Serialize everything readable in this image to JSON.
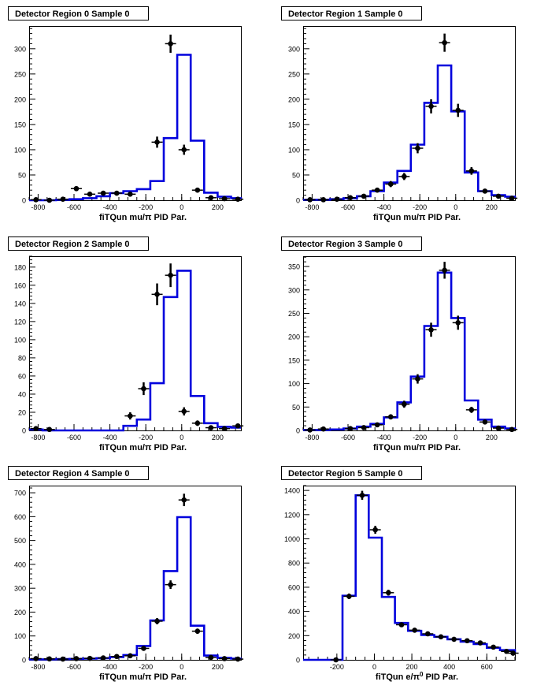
{
  "colors": {
    "mc": "#0000dd",
    "data": "#000000",
    "frame": "#000000"
  },
  "chart_data": [
    {
      "type": "histogram",
      "title": "Detector Region 0 Sample 0",
      "xlabel": "fiTQun mu/π PID Par.",
      "xlim": [
        -850,
        330
      ],
      "ylim": [
        0,
        345
      ],
      "xticks": [
        -800,
        -600,
        -400,
        -200,
        0,
        200
      ],
      "yticks": [
        0,
        50,
        100,
        150,
        200,
        250,
        300
      ],
      "bin_edges": [
        -850,
        -775,
        -700,
        -625,
        -550,
        -475,
        -400,
        -325,
        -250,
        -175,
        -100,
        -25,
        50,
        125,
        200,
        275,
        350
      ],
      "mc": [
        0,
        0,
        1,
        2,
        4,
        8,
        14,
        18,
        22,
        38,
        123,
        288,
        118,
        15,
        7,
        4,
        3
      ],
      "data_points": [
        {
          "x": -812,
          "y": 1,
          "e": 1
        },
        {
          "x": -737,
          "y": 0,
          "e": 1
        },
        {
          "x": -662,
          "y": 2,
          "e": 1.5
        },
        {
          "x": -587,
          "y": 23,
          "e": 5
        },
        {
          "x": -512,
          "y": 12,
          "e": 3.5
        },
        {
          "x": -437,
          "y": 14,
          "e": 4
        },
        {
          "x": -362,
          "y": 14,
          "e": 4
        },
        {
          "x": -287,
          "y": 12,
          "e": 3.5
        },
        {
          "x": -137,
          "y": 115,
          "e": 11
        },
        {
          "x": -62,
          "y": 310,
          "e": 18
        },
        {
          "x": 13,
          "y": 100,
          "e": 10
        },
        {
          "x": 88,
          "y": 20,
          "e": 4.5
        },
        {
          "x": 163,
          "y": 5,
          "e": 2.5
        },
        {
          "x": 238,
          "y": 3,
          "e": 2
        },
        {
          "x": 313,
          "y": 2,
          "e": 1.5
        }
      ]
    },
    {
      "type": "histogram",
      "title": "Detector Region 1 Sample 0",
      "xlabel": "fiTQun mu/π PID Par.",
      "xlim": [
        -850,
        330
      ],
      "ylim": [
        0,
        345
      ],
      "xticks": [
        -800,
        -600,
        -400,
        -200,
        0,
        200
      ],
      "yticks": [
        0,
        50,
        100,
        150,
        200,
        250,
        300
      ],
      "bin_edges": [
        -850,
        -775,
        -700,
        -625,
        -550,
        -475,
        -400,
        -325,
        -250,
        -175,
        -100,
        -25,
        50,
        125,
        200,
        275,
        350
      ],
      "mc": [
        1,
        1,
        2,
        4,
        8,
        18,
        35,
        58,
        110,
        193,
        267,
        176,
        55,
        18,
        10,
        7,
        5
      ],
      "data_points": [
        {
          "x": -812,
          "y": 1,
          "e": 1
        },
        {
          "x": -737,
          "y": 1,
          "e": 1
        },
        {
          "x": -662,
          "y": 2,
          "e": 1.5
        },
        {
          "x": -587,
          "y": 5,
          "e": 2.5
        },
        {
          "x": -512,
          "y": 8,
          "e": 3
        },
        {
          "x": -437,
          "y": 20,
          "e": 4.5
        },
        {
          "x": -362,
          "y": 32,
          "e": 6
        },
        {
          "x": -287,
          "y": 47,
          "e": 7
        },
        {
          "x": -212,
          "y": 103,
          "e": 10
        },
        {
          "x": -137,
          "y": 186,
          "e": 14
        },
        {
          "x": -62,
          "y": 312,
          "e": 18
        },
        {
          "x": 13,
          "y": 178,
          "e": 13
        },
        {
          "x": 88,
          "y": 58,
          "e": 7.5
        },
        {
          "x": 163,
          "y": 18,
          "e": 4
        },
        {
          "x": 238,
          "y": 8,
          "e": 3
        },
        {
          "x": 313,
          "y": 4,
          "e": 2
        }
      ]
    },
    {
      "type": "histogram",
      "title": "Detector Region 2 Sample 0",
      "xlabel": "fiTQun mu/π PID Par.",
      "xlim": [
        -850,
        330
      ],
      "ylim": [
        0,
        192
      ],
      "xticks": [
        -800,
        -600,
        -400,
        -200,
        0,
        200
      ],
      "yticks": [
        0,
        20,
        40,
        60,
        80,
        100,
        120,
        140,
        160,
        180
      ],
      "bin_edges": [
        -850,
        -775,
        -700,
        -625,
        -550,
        -475,
        -400,
        -325,
        -250,
        -175,
        -100,
        -25,
        50,
        125,
        200,
        275,
        350
      ],
      "mc": [
        1,
        0,
        0,
        0,
        0,
        0,
        0,
        5,
        12,
        52,
        147,
        176,
        38,
        8,
        4,
        3,
        3
      ],
      "data_points": [
        {
          "x": -812,
          "y": 2,
          "e": 1.5
        },
        {
          "x": -737,
          "y": 1,
          "e": 1
        },
        {
          "x": -287,
          "y": 16,
          "e": 4
        },
        {
          "x": -212,
          "y": 46,
          "e": 7
        },
        {
          "x": -137,
          "y": 150,
          "e": 12
        },
        {
          "x": -62,
          "y": 171,
          "e": 13
        },
        {
          "x": 13,
          "y": 21,
          "e": 4.5
        },
        {
          "x": 88,
          "y": 8,
          "e": 3
        },
        {
          "x": 163,
          "y": 3,
          "e": 2
        },
        {
          "x": 238,
          "y": 2,
          "e": 1.5
        },
        {
          "x": 313,
          "y": 5,
          "e": 2.5
        }
      ]
    },
    {
      "type": "histogram",
      "title": "Detector Region 3 Sample 0",
      "xlabel": "fiTQun mu/π PID Par.",
      "xlim": [
        -850,
        330
      ],
      "ylim": [
        0,
        372
      ],
      "xticks": [
        -800,
        -600,
        -400,
        -200,
        0,
        200
      ],
      "yticks": [
        0,
        50,
        100,
        150,
        200,
        250,
        300,
        350
      ],
      "bin_edges": [
        -850,
        -775,
        -700,
        -625,
        -550,
        -475,
        -400,
        -325,
        -250,
        -175,
        -100,
        -25,
        50,
        125,
        200,
        275,
        350
      ],
      "mc": [
        1,
        1,
        2,
        4,
        8,
        14,
        28,
        60,
        115,
        223,
        337,
        240,
        64,
        23,
        8,
        4,
        3
      ],
      "data_points": [
        {
          "x": -812,
          "y": 1,
          "e": 1
        },
        {
          "x": -737,
          "y": 3,
          "e": 1.5
        },
        {
          "x": -587,
          "y": 4,
          "e": 2
        },
        {
          "x": -512,
          "y": 6,
          "e": 2.5
        },
        {
          "x": -437,
          "y": 12,
          "e": 3.5
        },
        {
          "x": -362,
          "y": 29,
          "e": 5.5
        },
        {
          "x": -287,
          "y": 56,
          "e": 7.5
        },
        {
          "x": -212,
          "y": 110,
          "e": 10
        },
        {
          "x": -137,
          "y": 215,
          "e": 15
        },
        {
          "x": -62,
          "y": 342,
          "e": 18
        },
        {
          "x": 13,
          "y": 230,
          "e": 15
        },
        {
          "x": 88,
          "y": 44,
          "e": 6.5
        },
        {
          "x": 163,
          "y": 18,
          "e": 4
        },
        {
          "x": 238,
          "y": 5,
          "e": 2.5
        },
        {
          "x": 313,
          "y": 2,
          "e": 1.5
        }
      ]
    },
    {
      "type": "histogram",
      "title": "Detector Region 4 Sample 0",
      "xlabel": "fiTQun mu/π PID Par.",
      "xlim": [
        -850,
        330
      ],
      "ylim": [
        0,
        730
      ],
      "xticks": [
        -800,
        -600,
        -400,
        -200,
        0,
        200
      ],
      "yticks": [
        0,
        100,
        200,
        300,
        400,
        500,
        600,
        700
      ],
      "bin_edges": [
        -850,
        -775,
        -700,
        -625,
        -550,
        -475,
        -400,
        -325,
        -250,
        -175,
        -100,
        -25,
        50,
        125,
        200,
        275,
        350
      ],
      "mc": [
        2,
        2,
        3,
        4,
        5,
        7,
        12,
        20,
        58,
        165,
        372,
        598,
        143,
        18,
        8,
        5,
        4
      ],
      "data_points": [
        {
          "x": -812,
          "y": 5,
          "e": 2.5
        },
        {
          "x": -737,
          "y": 4,
          "e": 2
        },
        {
          "x": -662,
          "y": 3,
          "e": 2
        },
        {
          "x": -587,
          "y": 5,
          "e": 2.5
        },
        {
          "x": -512,
          "y": 6,
          "e": 2.5
        },
        {
          "x": -437,
          "y": 8,
          "e": 3
        },
        {
          "x": -362,
          "y": 14,
          "e": 4
        },
        {
          "x": -287,
          "y": 17,
          "e": 4
        },
        {
          "x": -212,
          "y": 48,
          "e": 7
        },
        {
          "x": -137,
          "y": 162,
          "e": 13
        },
        {
          "x": -62,
          "y": 315,
          "e": 18
        },
        {
          "x": 13,
          "y": 670,
          "e": 26
        },
        {
          "x": 88,
          "y": 120,
          "e": 11
        },
        {
          "x": 163,
          "y": 10,
          "e": 3
        },
        {
          "x": 238,
          "y": 5,
          "e": 2.5
        },
        {
          "x": 313,
          "y": 3,
          "e": 2
        }
      ]
    },
    {
      "type": "histogram",
      "title": "Detector Region 5 Sample 0",
      "xlabel": "fiTQun e/π",
      "xlabel_sup": "0",
      "xlabel_end": " PID Par.",
      "xlim": [
        -380,
        750
      ],
      "ylim": [
        0,
        1440
      ],
      "xticks": [
        -200,
        0,
        200,
        400,
        600
      ],
      "yticks": [
        0,
        200,
        400,
        600,
        800,
        1000,
        1200,
        1400
      ],
      "bin_edges": [
        -380,
        -310,
        -240,
        -170,
        -100,
        -30,
        40,
        110,
        180,
        250,
        320,
        390,
        460,
        530,
        600,
        670,
        750
      ],
      "mc": [
        0,
        0,
        0,
        530,
        1360,
        1010,
        520,
        305,
        240,
        205,
        190,
        170,
        150,
        130,
        100,
        80,
        60
      ],
      "data_points": [
        {
          "x": -205,
          "y": 0,
          "e": 3
        },
        {
          "x": -135,
          "y": 525,
          "e": 23
        },
        {
          "x": -65,
          "y": 1360,
          "e": 37
        },
        {
          "x": 5,
          "y": 1075,
          "e": 33
        },
        {
          "x": 75,
          "y": 555,
          "e": 24
        },
        {
          "x": 145,
          "y": 290,
          "e": 17
        },
        {
          "x": 215,
          "y": 245,
          "e": 16
        },
        {
          "x": 285,
          "y": 215,
          "e": 15
        },
        {
          "x": 355,
          "y": 190,
          "e": 14
        },
        {
          "x": 425,
          "y": 170,
          "e": 13
        },
        {
          "x": 495,
          "y": 158,
          "e": 12.5
        },
        {
          "x": 565,
          "y": 140,
          "e": 12
        },
        {
          "x": 635,
          "y": 105,
          "e": 10
        },
        {
          "x": 705,
          "y": 70,
          "e": 8.5
        },
        {
          "x": 740,
          "y": 55,
          "e": 7.5
        }
      ]
    }
  ]
}
